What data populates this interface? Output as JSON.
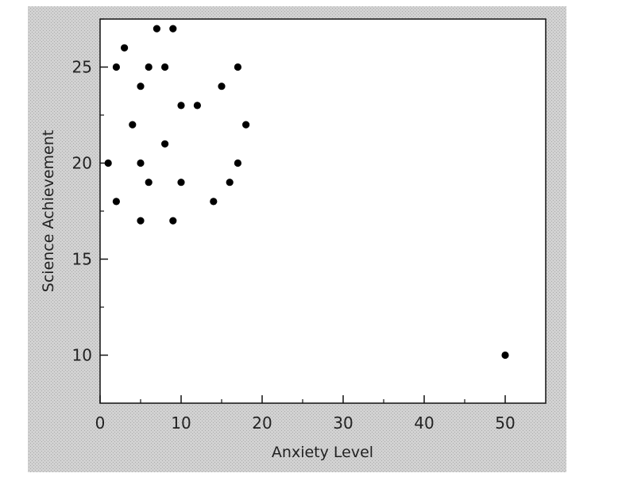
{
  "chart_data": {
    "type": "scatter",
    "title": "",
    "xlabel": "Anxiety Level",
    "ylabel": "Science Achievement",
    "xlim": [
      0,
      55
    ],
    "ylim": [
      7.5,
      27.5
    ],
    "xticks": [
      0,
      10,
      20,
      30,
      40,
      50
    ],
    "yticks": [
      10,
      15,
      20,
      25
    ],
    "grid": false,
    "series": [
      {
        "name": "",
        "points": [
          {
            "x": 1,
            "y": 20
          },
          {
            "x": 2,
            "y": 25
          },
          {
            "x": 2,
            "y": 18
          },
          {
            "x": 3,
            "y": 26
          },
          {
            "x": 4,
            "y": 22
          },
          {
            "x": 5,
            "y": 24
          },
          {
            "x": 5,
            "y": 20
          },
          {
            "x": 5,
            "y": 17
          },
          {
            "x": 6,
            "y": 25
          },
          {
            "x": 6,
            "y": 19
          },
          {
            "x": 7,
            "y": 27
          },
          {
            "x": 8,
            "y": 25
          },
          {
            "x": 8,
            "y": 21
          },
          {
            "x": 9,
            "y": 27
          },
          {
            "x": 9,
            "y": 17
          },
          {
            "x": 10,
            "y": 23
          },
          {
            "x": 10,
            "y": 19
          },
          {
            "x": 12,
            "y": 23
          },
          {
            "x": 14,
            "y": 18
          },
          {
            "x": 15,
            "y": 24
          },
          {
            "x": 16,
            "y": 19
          },
          {
            "x": 17,
            "y": 25
          },
          {
            "x": 17,
            "y": 20
          },
          {
            "x": 18,
            "y": 22
          },
          {
            "x": 50,
            "y": 10
          }
        ]
      }
    ]
  },
  "colors": {
    "frame_background": "#c8c8c8",
    "plot_background": "#ffffff",
    "axis": "#111111",
    "marker": "#000000"
  }
}
